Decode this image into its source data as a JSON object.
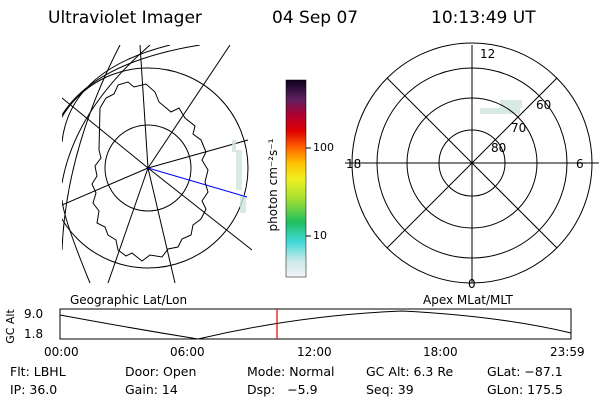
{
  "header": {
    "instrument": "Ultraviolet Imager",
    "date": "04 Sep 07",
    "time": "10:13:49 UT"
  },
  "colorbar": {
    "unit_label": "photon cm⁻²s⁻¹",
    "ticks": [
      "100",
      "10"
    ]
  },
  "panel_labels": {
    "left": "Geographic Lat/Lon",
    "right": "Apex MLat/MLT"
  },
  "polar": {
    "mlt_labels": {
      "top": "12",
      "bottom": "0",
      "left": "18",
      "right": "6"
    },
    "lat_labels": [
      "60",
      "70",
      "80"
    ]
  },
  "timeline": {
    "axis_label": "GC Alt",
    "y_ticks": [
      "9.0",
      "1.8"
    ],
    "x_ticks": [
      "00:00",
      "06:00",
      "12:00",
      "18:00",
      "23:59"
    ],
    "marker_color": "#e00000"
  },
  "footer": {
    "rows": [
      [
        "Flt: LBHL",
        "Door: Open",
        "Mode: Normal",
        "GC Alt: 6.3 Re",
        "GLat: −87.1"
      ],
      [
        "IP: 36.0",
        "Gain: 14",
        "Dsp:   −5.9",
        "Seq: 39",
        "GLon: 175.5"
      ]
    ]
  },
  "colors": {
    "meridian_blue": "#0000ff",
    "timeline_marker": "#e00000"
  }
}
